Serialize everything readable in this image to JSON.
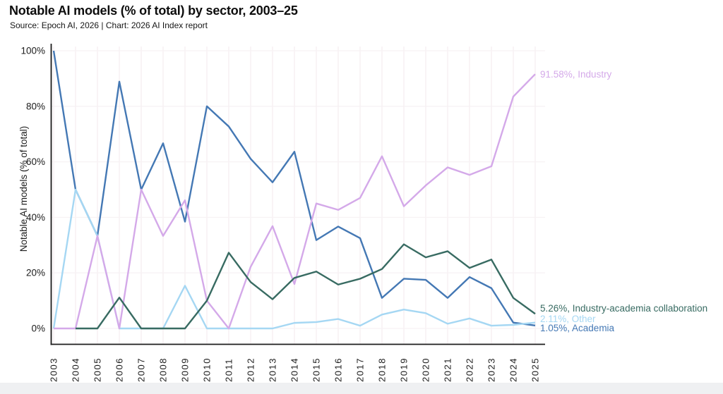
{
  "chart_data": {
    "type": "line",
    "title": "Notable AI models (% of total) by sector, 2003–25",
    "subtitle": "Source: Epoch AI, 2026 | Chart: 2026 AI Index report",
    "ylabel": "Notable AI models (% of total)",
    "xlabel": "",
    "x": [
      2003,
      2004,
      2005,
      2006,
      2007,
      2008,
      2009,
      2010,
      2011,
      2012,
      2013,
      2014,
      2015,
      2016,
      2017,
      2018,
      2019,
      2020,
      2021,
      2022,
      2023,
      2024,
      2025
    ],
    "ylim": [
      0,
      100
    ],
    "ytick_labels": [
      "0%",
      "20%",
      "40%",
      "60%",
      "80%",
      "100%"
    ],
    "grid": true,
    "legend_position": "end-of-line-labels",
    "series": [
      {
        "name": "Industry",
        "color": "#d4a9e9",
        "end_label": "91.58%, Industry",
        "values": [
          0,
          0,
          33.33,
          0,
          50,
          33.33,
          46.15,
          10,
          0,
          22.2,
          36.84,
          16,
          45,
          42.7,
          47,
          62,
          44,
          51.5,
          58,
          55.3,
          58.4,
          83.5,
          91.58
        ]
      },
      {
        "name": "Industry-academia collaboration",
        "color": "#386b62",
        "end_label": "5.26%, Industry-academia collaboration",
        "values": [
          null,
          0,
          0,
          11.11,
          0,
          0,
          0,
          10,
          27.27,
          16.7,
          10.53,
          18.2,
          20.5,
          15.8,
          17.9,
          21.4,
          30.3,
          25.6,
          27.8,
          21.8,
          24.8,
          11,
          5.26
        ]
      },
      {
        "name": "Other",
        "color": "#a5d7f3",
        "end_label": "2.11%, Other",
        "values": [
          0,
          50,
          33.33,
          0,
          0,
          0,
          15.38,
          0,
          0,
          0,
          0,
          2,
          2.3,
          3.4,
          1,
          5,
          6.8,
          5.5,
          1.7,
          3.6,
          1,
          1.3,
          2.11
        ]
      },
      {
        "name": "Academia",
        "color": "#4478b4",
        "end_label": "1.05%, Academia",
        "values": [
          100,
          50,
          33.33,
          88.89,
          50,
          66.67,
          38.46,
          80,
          72.73,
          61.1,
          52.63,
          63.64,
          31.82,
          36.7,
          32.5,
          11,
          17.9,
          17.5,
          11,
          18.5,
          14.5,
          2.1,
          1.05
        ]
      }
    ],
    "draw_order": [
      3,
      2,
      0,
      1
    ],
    "end_label_dy": [
      0,
      -8,
      -5,
      4
    ]
  }
}
